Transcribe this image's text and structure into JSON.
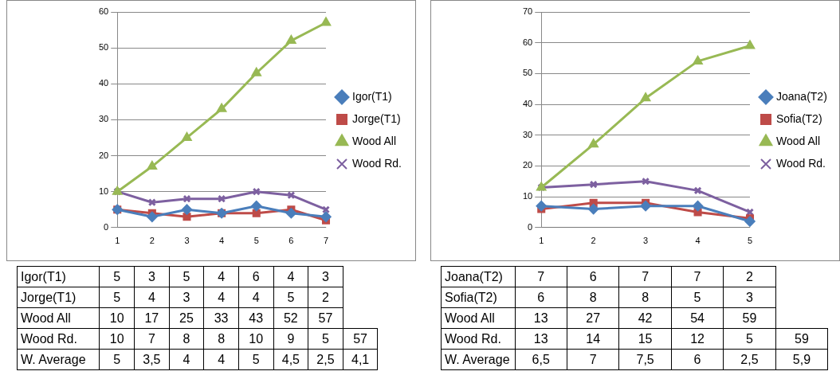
{
  "chart_data": [
    {
      "type": "line",
      "categories": [
        "1",
        "2",
        "3",
        "4",
        "5",
        "6",
        "7"
      ],
      "ylim": [
        0,
        60
      ],
      "yticks": [
        0,
        10,
        20,
        30,
        40,
        50,
        60
      ],
      "grid": "y",
      "legend": "right",
      "data_labels": true,
      "series": [
        {
          "name": "Igor(T1)",
          "color": "#4a7ebb",
          "marker": "diamond",
          "values": [
            5,
            3,
            5,
            4,
            6,
            4,
            3
          ]
        },
        {
          "name": "Jorge(T1)",
          "color": "#be4b48",
          "marker": "square",
          "values": [
            5,
            4,
            3,
            4,
            4,
            5,
            2
          ]
        },
        {
          "name": "Wood All",
          "color": "#98b954",
          "marker": "triangle",
          "values": [
            10,
            17,
            25,
            33,
            43,
            52,
            57
          ]
        },
        {
          "name": "Wood Rd.",
          "color": "#7d60a0",
          "marker": "cross",
          "values": [
            10,
            7,
            8,
            8,
            10,
            9,
            5
          ]
        }
      ],
      "annotations": [
        "57",
        "W. Average",
        "5",
        "3,5",
        "4",
        "4",
        "5",
        "4,5",
        "2,5",
        "4,1"
      ]
    },
    {
      "type": "line",
      "categories": [
        "1",
        "2",
        "3",
        "4",
        "5"
      ],
      "ylim": [
        0,
        70
      ],
      "yticks": [
        0,
        10,
        20,
        30,
        40,
        50,
        60,
        70
      ],
      "grid": "y",
      "legend": "right",
      "data_labels": true,
      "series": [
        {
          "name": "Joana(T2)",
          "color": "#4a7ebb",
          "marker": "diamond",
          "values": [
            7,
            6,
            7,
            7,
            2
          ]
        },
        {
          "name": "Sofia(T2)",
          "color": "#be4b48",
          "marker": "square",
          "values": [
            6,
            8,
            8,
            5,
            3
          ]
        },
        {
          "name": "Wood All",
          "color": "#98b954",
          "marker": "triangle",
          "values": [
            13,
            27,
            42,
            54,
            59
          ]
        },
        {
          "name": "Wood Rd.",
          "color": "#7d60a0",
          "marker": "cross",
          "values": [
            13,
            14,
            15,
            12,
            5
          ]
        }
      ],
      "annotations": [
        "59",
        "W. Average",
        "6,5",
        "7",
        "7,5",
        "6",
        "2,5",
        "5,9"
      ]
    }
  ]
}
